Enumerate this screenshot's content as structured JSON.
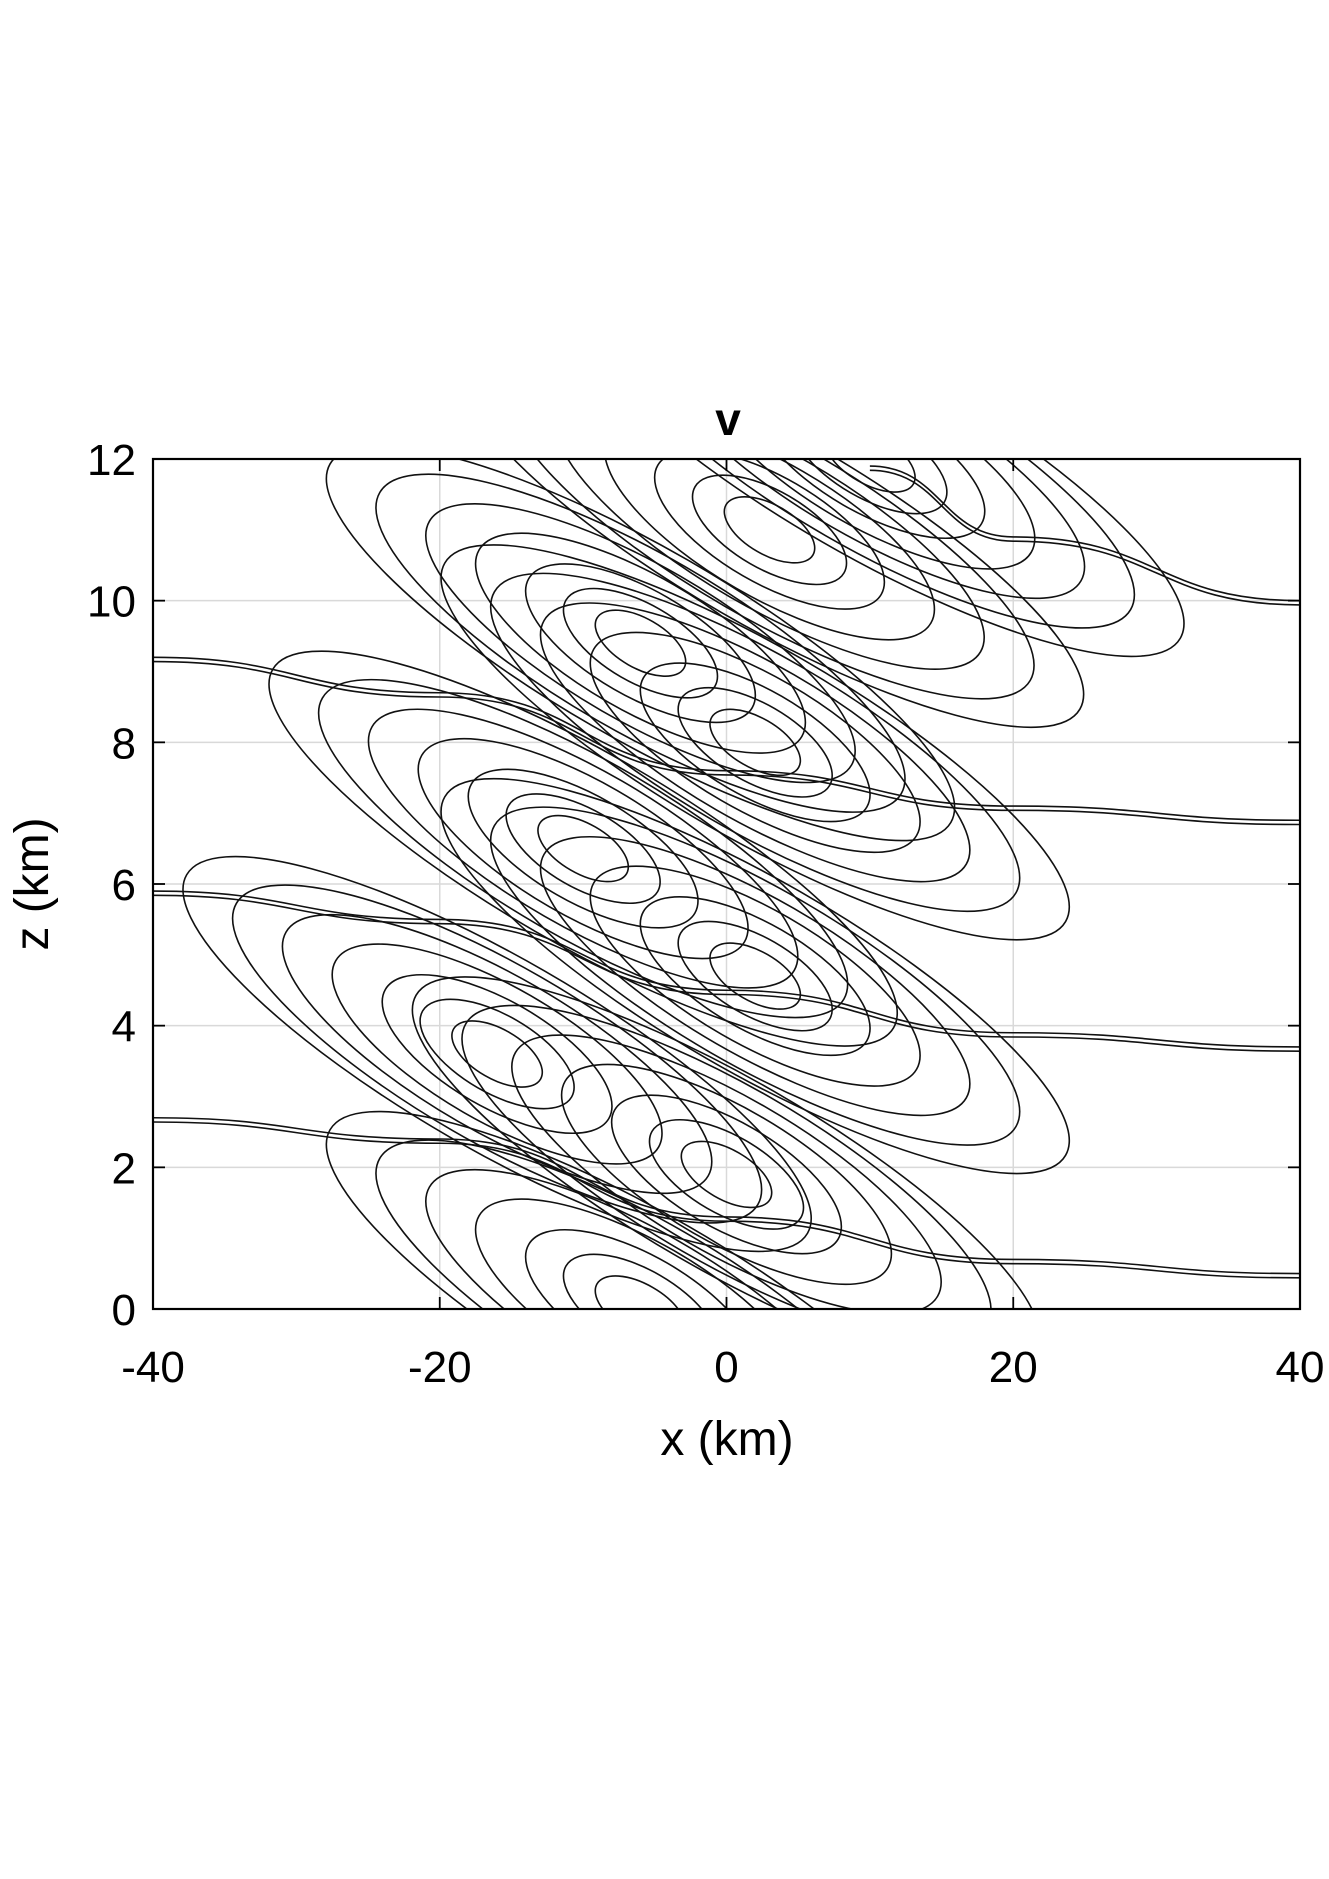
{
  "chart_data": {
    "type": "contour",
    "title": "v",
    "xlabel": "x (km)",
    "ylabel": "z (km)",
    "xlim": [
      -40,
      40
    ],
    "ylim": [
      0,
      12
    ],
    "xticks": [
      -40,
      -20,
      0,
      20,
      40
    ],
    "xtick_labels": [
      "-40",
      "-20",
      "0",
      "20",
      "40"
    ],
    "yticks": [
      0,
      2,
      4,
      6,
      8,
      10,
      12
    ],
    "ytick_labels": [
      "0",
      "2",
      "4",
      "6",
      "8",
      "10",
      "12"
    ],
    "grid": true,
    "colors": {
      "line": "#111111",
      "grid": "#d9d9d9",
      "background": "#ffffff"
    },
    "contour_centers": [
      {
        "x": -6,
        "z": 0.0
      },
      {
        "x": 0,
        "z": 1.9
      },
      {
        "x": -16,
        "z": 3.6
      },
      {
        "x": 2,
        "z": 4.7
      },
      {
        "x": -10,
        "z": 6.5
      },
      {
        "x": 2,
        "z": 8.0
      },
      {
        "x": -6,
        "z": 9.4
      },
      {
        "x": 3,
        "z": 11.0
      },
      {
        "x": 10,
        "z": 12.0
      }
    ],
    "band_curves": [
      [
        [
          -40,
          2.7
        ],
        [
          -20,
          2.4
        ],
        [
          0,
          1.3
        ],
        [
          20,
          0.7
        ],
        [
          40,
          0.5
        ]
      ],
      [
        [
          -40,
          5.9
        ],
        [
          -20,
          5.5
        ],
        [
          0,
          4.5
        ],
        [
          20,
          3.9
        ],
        [
          40,
          3.7
        ]
      ],
      [
        [
          -40,
          9.2
        ],
        [
          -20,
          8.7
        ],
        [
          0,
          7.6
        ],
        [
          20,
          7.1
        ],
        [
          40,
          6.9
        ]
      ],
      [
        [
          10,
          11.9
        ],
        [
          20,
          10.9
        ],
        [
          40,
          10.0
        ]
      ]
    ]
  }
}
